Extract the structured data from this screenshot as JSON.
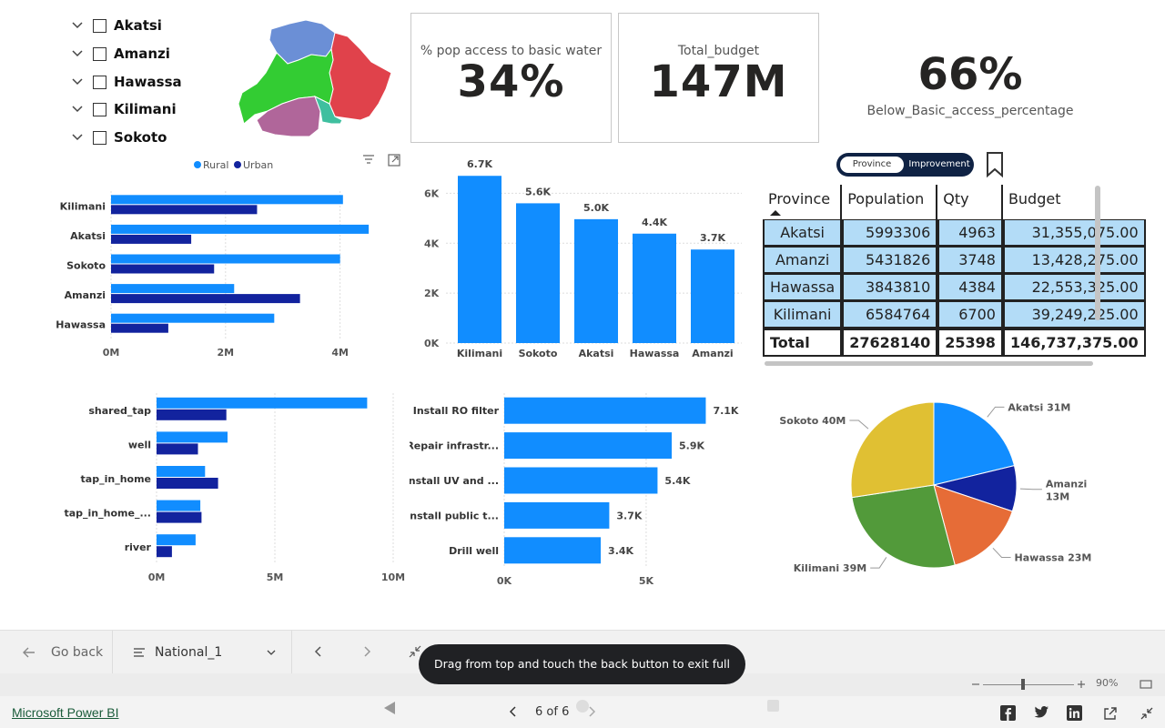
{
  "slicer": {
    "items": [
      {
        "label": "Akatsi"
      },
      {
        "label": "Amanzi"
      },
      {
        "label": "Hawassa"
      },
      {
        "label": "Kilimani"
      },
      {
        "label": "Sokoto"
      }
    ]
  },
  "map": {
    "region_colors": [
      "#6b8fd6",
      "#e0424b",
      "#33cc33",
      "#b0669a",
      "#3fbf9f"
    ]
  },
  "cards": {
    "water_access": {
      "title": "% pop access to basic water",
      "value": "34%"
    },
    "total_budget": {
      "title": "Total_budget",
      "value": "147M"
    },
    "below_basic": {
      "title": "Below_Basic_access_percentage",
      "value": "66%"
    }
  },
  "toggle": {
    "left": "Province",
    "right": "Improvement"
  },
  "colors": {
    "rural": "#118dff",
    "urban": "#12239e"
  },
  "chart_data": [
    {
      "type": "bar",
      "orientation": "horizontal",
      "categories": [
        "Kilimani",
        "Akatsi",
        "Sokoto",
        "Amanzi",
        "Hawassa"
      ],
      "series": [
        {
          "name": "Rural",
          "values": [
            4.05,
            4.5,
            4.0,
            2.15,
            2.85
          ]
        },
        {
          "name": "Urban",
          "values": [
            2.55,
            1.4,
            1.8,
            3.3,
            1.0
          ]
        }
      ],
      "xticks": [
        "0M",
        "2M",
        "4M"
      ],
      "xlim": [
        0,
        4.8
      ],
      "legend": "top"
    },
    {
      "type": "bar",
      "categories": [
        "Kilimani",
        "Sokoto",
        "Akatsi",
        "Hawassa",
        "Amanzi"
      ],
      "values": [
        6700,
        5600,
        4963,
        4384,
        3748
      ],
      "data_labels": [
        "6.7K",
        "5.6K",
        "5.0K",
        "4.4K",
        "3.7K"
      ],
      "yticks": [
        "0K",
        "2K",
        "4K",
        "6K"
      ],
      "ylim": [
        0,
        7000
      ]
    },
    {
      "type": "bar",
      "orientation": "horizontal",
      "categories": [
        "shared_tap",
        "well",
        "tap_in_home",
        "tap_in_home_...",
        "river"
      ],
      "series": [
        {
          "name": "Rural",
          "values": [
            8.9,
            3.0,
            2.05,
            1.85,
            1.65
          ]
        },
        {
          "name": "Urban",
          "values": [
            2.95,
            1.75,
            2.6,
            1.9,
            0.65
          ]
        }
      ],
      "xticks": [
        "0M",
        "5M",
        "10M"
      ],
      "xlim": [
        0,
        10
      ]
    },
    {
      "type": "bar",
      "orientation": "horizontal",
      "categories": [
        "Install RO filter",
        "Repair infrastr...",
        "Install UV and ...",
        "Install public t...",
        "Drill well"
      ],
      "values": [
        7100,
        5900,
        5400,
        3700,
        3400
      ],
      "data_labels": [
        "7.1K",
        "5.9K",
        "5.4K",
        "3.7K",
        "3.4K"
      ],
      "xticks": [
        "0K",
        "5K"
      ],
      "xlim": [
        0,
        8400
      ]
    },
    {
      "type": "pie",
      "slices": [
        {
          "label": "Akatsi 31M",
          "value": 31,
          "color": "#118dff"
        },
        {
          "label": "Amanzi 13M",
          "value": 13,
          "color": "#12239e"
        },
        {
          "label": "Hawassa 23M",
          "value": 23,
          "color": "#e66c37"
        },
        {
          "label": "Kilimani 39M",
          "value": 39,
          "color": "#529a3a"
        },
        {
          "label": "Sokoto 40M",
          "value": 40,
          "color": "#e0c033"
        }
      ]
    }
  ],
  "table": {
    "headers": [
      "Province",
      "Population",
      "Qty",
      "Budget"
    ],
    "rows": [
      [
        "Akatsi",
        "5993306",
        "4963",
        "31,355,075.00"
      ],
      [
        "Amanzi",
        "5431826",
        "3748",
        "13,428,275.00"
      ],
      [
        "Hawassa",
        "3843810",
        "4384",
        "22,553,325.00"
      ],
      [
        "Kilimani",
        "6584764",
        "6700",
        "39,249,225.00"
      ]
    ],
    "total": [
      "Total",
      "27628140",
      "25398",
      "146,737,375.00"
    ]
  },
  "toolbar": {
    "go_back": "Go back",
    "page_select": "National_1",
    "toast": "Drag from top and touch the back button to exit full screen."
  },
  "status": {
    "zoom": "90%"
  },
  "footer": {
    "brand": "Microsoft Power BI",
    "page_counter": "6 of 6"
  }
}
